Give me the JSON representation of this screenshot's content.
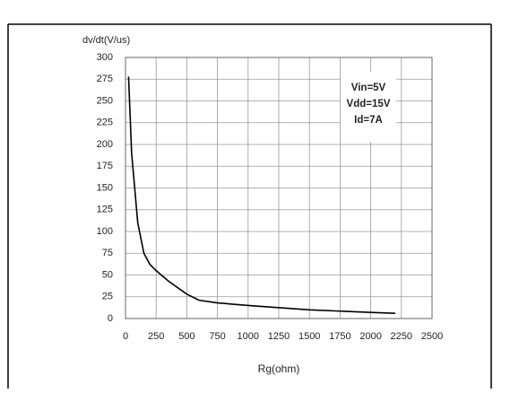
{
  "chart_data": {
    "type": "line",
    "ylabel": "dv/dt(V/us)",
    "xlabel": "Rg(ohm)",
    "annotations": [
      "Vin=5V",
      "Vdd=15V",
      "Id=7A"
    ],
    "x": [
      25,
      50,
      100,
      150,
      200,
      250,
      350,
      500,
      600,
      750,
      1000,
      1500,
      2000,
      2200
    ],
    "series": [
      {
        "color": "#000000",
        "values": [
          278,
          190,
          110,
          75,
          62,
          55,
          43,
          28,
          21,
          18,
          15,
          10,
          7,
          6
        ]
      }
    ],
    "xlim": [
      0,
      2500
    ],
    "xticks": [
      0,
      250,
      500,
      750,
      1000,
      1250,
      1500,
      1750,
      2000,
      2250,
      2500
    ],
    "ylim": [
      0,
      300
    ],
    "yticks": [
      0,
      25,
      50,
      75,
      100,
      125,
      150,
      175,
      200,
      225,
      250,
      275,
      300
    ],
    "grid": true
  }
}
